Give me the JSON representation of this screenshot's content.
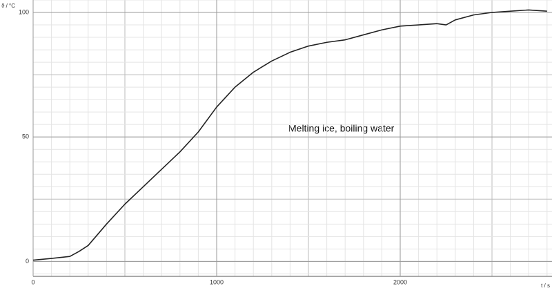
{
  "chart_data": {
    "type": "line",
    "annotation": "Melting ice, boiling water",
    "y_label": "ϑ / °C",
    "x_label": "t / s",
    "x": [
      0,
      100,
      200,
      250,
      300,
      400,
      500,
      600,
      700,
      800,
      900,
      1000,
      1100,
      1200,
      1300,
      1400,
      1500,
      1600,
      1700,
      1800,
      1900,
      2000,
      2100,
      2200,
      2250,
      2300,
      2400,
      2500,
      2600,
      2700,
      2800
    ],
    "series": [
      {
        "color": "#222222",
        "values": [
          0.5,
          1.2,
          2,
          4,
          6.4,
          15,
          23,
          30,
          37,
          44,
          52,
          62,
          70,
          76,
          80.5,
          84,
          86.5,
          88,
          89,
          91,
          93,
          94.5,
          95,
          95.5,
          95,
          97,
          99,
          100,
          100.5,
          101,
          100.5
        ]
      }
    ],
    "xlim": [
      0,
      2827
    ],
    "ylim": [
      -6,
      105
    ],
    "xticks": [
      0,
      1000,
      2000
    ],
    "yticks": [
      0,
      50,
      100
    ],
    "grid": true
  }
}
